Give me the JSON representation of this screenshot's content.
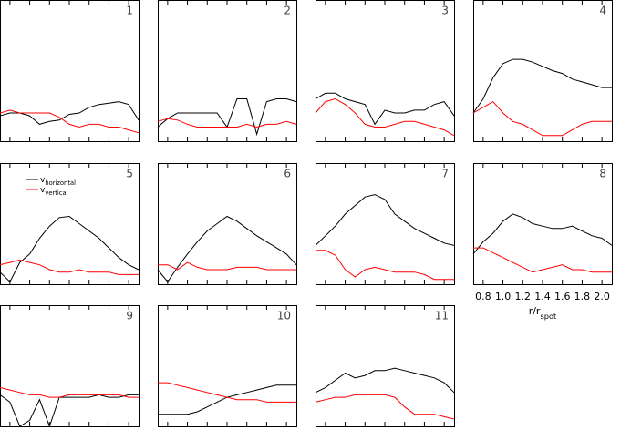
{
  "chart_data": [
    {
      "type": "line",
      "title": "1",
      "x": [
        0.7,
        0.8,
        0.9,
        1.0,
        1.1,
        1.2,
        1.3,
        1.4,
        1.5,
        1.6,
        1.7,
        1.8,
        1.9,
        2.0,
        2.1
      ],
      "xlim": [
        0.7,
        2.1
      ],
      "ylim": [
        0,
        1
      ],
      "series": [
        {
          "name": "v_horizontal",
          "color": "#000000",
          "values": [
            0.18,
            0.2,
            0.2,
            0.18,
            0.12,
            0.14,
            0.15,
            0.19,
            0.2,
            0.24,
            0.26,
            0.27,
            0.28,
            0.26,
            0.15
          ]
        },
        {
          "name": "v_vertical",
          "color": "#ff0000",
          "values": [
            0.2,
            0.22,
            0.2,
            0.2,
            0.2,
            0.2,
            0.17,
            0.12,
            0.1,
            0.12,
            0.12,
            0.1,
            0.1,
            0.08,
            0.06
          ]
        }
      ]
    },
    {
      "type": "line",
      "title": "2",
      "x": [
        0.7,
        0.8,
        0.9,
        1.0,
        1.1,
        1.2,
        1.3,
        1.4,
        1.5,
        1.6,
        1.7,
        1.8,
        1.9,
        2.0,
        2.1
      ],
      "xlim": [
        0.7,
        2.1
      ],
      "ylim": [
        0,
        1
      ],
      "series": [
        {
          "name": "v_horizontal",
          "color": "#000000",
          "values": [
            0.1,
            0.16,
            0.2,
            0.2,
            0.2,
            0.2,
            0.2,
            0.1,
            0.3,
            0.3,
            0.05,
            0.28,
            0.3,
            0.3,
            0.28
          ]
        },
        {
          "name": "v_vertical",
          "color": "#ff0000",
          "values": [
            0.14,
            0.16,
            0.15,
            0.12,
            0.1,
            0.1,
            0.1,
            0.1,
            0.1,
            0.12,
            0.1,
            0.12,
            0.12,
            0.14,
            0.12
          ]
        }
      ]
    },
    {
      "type": "line",
      "title": "3",
      "x": [
        0.7,
        0.8,
        0.9,
        1.0,
        1.1,
        1.2,
        1.3,
        1.4,
        1.5,
        1.6,
        1.7,
        1.8,
        1.9,
        2.0,
        2.1
      ],
      "xlim": [
        0.7,
        2.1
      ],
      "ylim": [
        0,
        1
      ],
      "series": [
        {
          "name": "v_horizontal",
          "color": "#000000",
          "values": [
            0.3,
            0.34,
            0.34,
            0.3,
            0.28,
            0.26,
            0.12,
            0.22,
            0.2,
            0.2,
            0.22,
            0.22,
            0.26,
            0.28,
            0.18
          ]
        },
        {
          "name": "v_vertical",
          "color": "#ff0000",
          "values": [
            0.2,
            0.28,
            0.3,
            0.26,
            0.2,
            0.12,
            0.1,
            0.1,
            0.12,
            0.14,
            0.14,
            0.12,
            0.1,
            0.08,
            0.04
          ]
        }
      ]
    },
    {
      "type": "line",
      "title": "4",
      "x": [
        0.7,
        0.8,
        0.9,
        1.0,
        1.1,
        1.2,
        1.3,
        1.4,
        1.5,
        1.6,
        1.7,
        1.8,
        1.9,
        2.0,
        2.1
      ],
      "xlim": [
        0.7,
        2.1
      ],
      "ylim": [
        0,
        1
      ],
      "series": [
        {
          "name": "v_horizontal",
          "color": "#000000",
          "values": [
            0.2,
            0.3,
            0.45,
            0.55,
            0.58,
            0.58,
            0.56,
            0.53,
            0.5,
            0.48,
            0.44,
            0.42,
            0.4,
            0.38,
            0.38
          ]
        },
        {
          "name": "v_vertical",
          "color": "#ff0000",
          "values": [
            0.2,
            0.24,
            0.28,
            0.2,
            0.14,
            0.12,
            0.08,
            0.04,
            0.04,
            0.04,
            0.08,
            0.12,
            0.14,
            0.14,
            0.14
          ]
        }
      ]
    },
    {
      "type": "line",
      "title": "5",
      "legend": true,
      "x": [
        0.7,
        0.8,
        0.9,
        1.0,
        1.1,
        1.2,
        1.3,
        1.4,
        1.5,
        1.6,
        1.7,
        1.8,
        1.9,
        2.0,
        2.1
      ],
      "xlim": [
        0.7,
        2.1
      ],
      "ylim": [
        0,
        1
      ],
      "series": [
        {
          "name": "v_horizontal",
          "color": "#000000",
          "values": [
            0.1,
            0.02,
            0.18,
            0.25,
            0.38,
            0.48,
            0.55,
            0.56,
            0.5,
            0.44,
            0.38,
            0.3,
            0.22,
            0.16,
            0.12
          ]
        },
        {
          "name": "v_vertical",
          "color": "#ff0000",
          "values": [
            0.16,
            0.18,
            0.2,
            0.18,
            0.16,
            0.12,
            0.1,
            0.1,
            0.12,
            0.1,
            0.1,
            0.1,
            0.08,
            0.08,
            0.08
          ]
        }
      ]
    },
    {
      "type": "line",
      "title": "6",
      "x": [
        0.7,
        0.8,
        0.9,
        1.0,
        1.1,
        1.2,
        1.3,
        1.4,
        1.5,
        1.6,
        1.7,
        1.8,
        1.9,
        2.0,
        2.1
      ],
      "xlim": [
        0.7,
        2.1
      ],
      "ylim": [
        0,
        1
      ],
      "series": [
        {
          "name": "v_horizontal",
          "color": "#000000",
          "values": [
            0.12,
            0.02,
            0.14,
            0.25,
            0.35,
            0.44,
            0.5,
            0.56,
            0.52,
            0.46,
            0.4,
            0.35,
            0.3,
            0.25,
            0.16
          ]
        },
        {
          "name": "v_vertical",
          "color": "#ff0000",
          "values": [
            0.16,
            0.16,
            0.12,
            0.18,
            0.14,
            0.12,
            0.12,
            0.12,
            0.14,
            0.14,
            0.14,
            0.12,
            0.12,
            0.12,
            0.12
          ]
        }
      ]
    },
    {
      "type": "line",
      "title": "7",
      "x": [
        0.7,
        0.8,
        0.9,
        1.0,
        1.1,
        1.2,
        1.3,
        1.4,
        1.5,
        1.6,
        1.7,
        1.8,
        1.9,
        2.0,
        2.1
      ],
      "xlim": [
        0.7,
        2.1
      ],
      "ylim": [
        0,
        1
      ],
      "series": [
        {
          "name": "v_horizontal",
          "color": "#000000",
          "values": [
            0.32,
            0.4,
            0.48,
            0.58,
            0.65,
            0.72,
            0.74,
            0.7,
            0.58,
            0.52,
            0.46,
            0.42,
            0.38,
            0.34,
            0.32
          ]
        },
        {
          "name": "v_vertical",
          "color": "#ff0000",
          "values": [
            0.28,
            0.28,
            0.24,
            0.12,
            0.06,
            0.12,
            0.14,
            0.12,
            0.1,
            0.1,
            0.1,
            0.08,
            0.04,
            0.04,
            0.04
          ]
        }
      ]
    },
    {
      "type": "line",
      "title": "8",
      "xlabel": "r/r_spot",
      "xticks": [
        {
          "value": 0.8,
          "label": "0.8"
        },
        {
          "value": 1.0,
          "label": "1.0"
        },
        {
          "value": 1.2,
          "label": "1.2"
        },
        {
          "value": 1.4,
          "label": "1.4"
        },
        {
          "value": 1.6,
          "label": "1.6"
        },
        {
          "value": 1.8,
          "label": "1.8"
        },
        {
          "value": 2.0,
          "label": "2.0"
        }
      ],
      "x": [
        0.7,
        0.8,
        0.9,
        1.0,
        1.1,
        1.2,
        1.3,
        1.4,
        1.5,
        1.6,
        1.7,
        1.8,
        1.9,
        2.0,
        2.1
      ],
      "xlim": [
        0.7,
        2.1
      ],
      "ylim": [
        0,
        1
      ],
      "series": [
        {
          "name": "v_horizontal",
          "color": "#000000",
          "values": [
            0.25,
            0.35,
            0.42,
            0.52,
            0.58,
            0.55,
            0.5,
            0.48,
            0.46,
            0.46,
            0.48,
            0.44,
            0.4,
            0.38,
            0.32
          ]
        },
        {
          "name": "v_vertical",
          "color": "#ff0000",
          "values": [
            0.3,
            0.3,
            0.26,
            0.22,
            0.18,
            0.14,
            0.1,
            0.12,
            0.14,
            0.16,
            0.12,
            0.12,
            0.1,
            0.1,
            0.1
          ]
        }
      ]
    },
    {
      "type": "line",
      "title": "9",
      "x": [
        0.7,
        0.8,
        0.9,
        1.0,
        1.1,
        1.2,
        1.3,
        1.4,
        1.5,
        1.6,
        1.7,
        1.8,
        1.9,
        2.0,
        2.1
      ],
      "xlim": [
        0.7,
        2.1
      ],
      "ylim": [
        0,
        1
      ],
      "series": [
        {
          "name": "v_horizontal",
          "color": "#000000",
          "values": [
            0.26,
            0.2,
            0.0,
            0.05,
            0.22,
            0.0,
            0.24,
            0.24,
            0.24,
            0.24,
            0.26,
            0.24,
            0.24,
            0.26,
            0.26
          ]
        },
        {
          "name": "v_vertical",
          "color": "#ff0000",
          "values": [
            0.32,
            0.3,
            0.28,
            0.26,
            0.26,
            0.24,
            0.24,
            0.26,
            0.26,
            0.26,
            0.26,
            0.26,
            0.26,
            0.24,
            0.24
          ]
        }
      ]
    },
    {
      "type": "line",
      "title": "10",
      "x": [
        0.7,
        0.8,
        0.9,
        1.0,
        1.1,
        1.2,
        1.3,
        1.4,
        1.5,
        1.6,
        1.7,
        1.8,
        1.9,
        2.0,
        2.1
      ],
      "xlim": [
        0.7,
        2.1
      ],
      "ylim": [
        0,
        1
      ],
      "series": [
        {
          "name": "v_horizontal",
          "color": "#000000",
          "values": [
            0.1,
            0.1,
            0.1,
            0.1,
            0.12,
            0.16,
            0.2,
            0.24,
            0.26,
            0.28,
            0.3,
            0.32,
            0.34,
            0.34,
            0.34
          ]
        },
        {
          "name": "v_vertical",
          "color": "#ff0000",
          "values": [
            0.36,
            0.36,
            0.34,
            0.32,
            0.3,
            0.28,
            0.26,
            0.24,
            0.22,
            0.22,
            0.22,
            0.2,
            0.2,
            0.2,
            0.2
          ]
        }
      ]
    },
    {
      "type": "line",
      "title": "11",
      "x": [
        0.7,
        0.8,
        0.9,
        1.0,
        1.1,
        1.2,
        1.3,
        1.4,
        1.5,
        1.6,
        1.7,
        1.8,
        1.9,
        2.0,
        2.1
      ],
      "xlim": [
        0.7,
        2.1
      ],
      "ylim": [
        0,
        1
      ],
      "series": [
        {
          "name": "v_horizontal",
          "color": "#000000",
          "values": [
            0.28,
            0.32,
            0.38,
            0.44,
            0.4,
            0.42,
            0.46,
            0.46,
            0.48,
            0.46,
            0.44,
            0.42,
            0.4,
            0.36,
            0.28
          ]
        },
        {
          "name": "v_vertical",
          "color": "#ff0000",
          "values": [
            0.2,
            0.22,
            0.24,
            0.24,
            0.26,
            0.26,
            0.26,
            0.26,
            0.24,
            0.16,
            0.1,
            0.1,
            0.1,
            0.08,
            0.06
          ]
        }
      ]
    }
  ]
}
